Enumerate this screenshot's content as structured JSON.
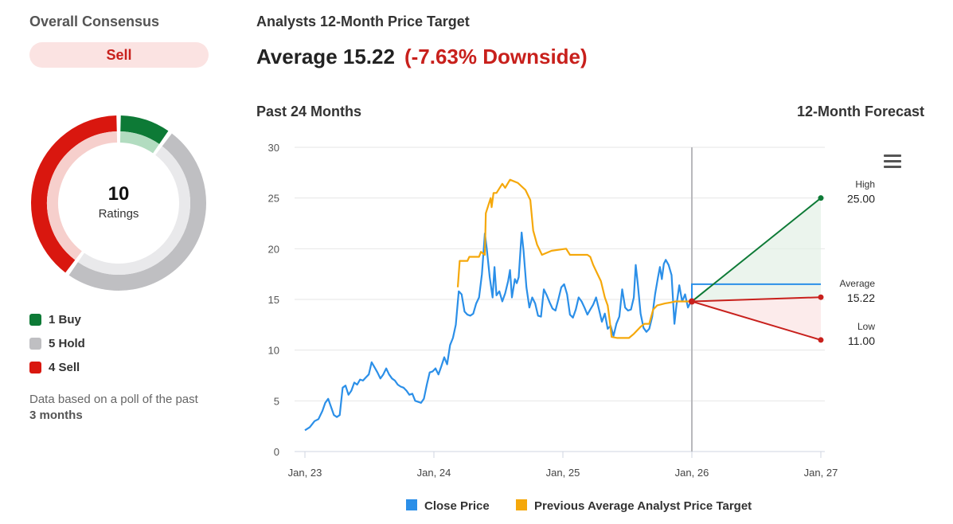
{
  "consensus": {
    "title": "Overall Consensus",
    "rating": "Sell",
    "total": "10",
    "total_caption": "Ratings",
    "legend": [
      {
        "label": "1 Buy",
        "count": 1,
        "color": "#0d7a36"
      },
      {
        "label": "5 Hold",
        "count": 5,
        "color": "#bfbfc2"
      },
      {
        "label": "4 Sell",
        "count": 4,
        "color": "#d9170f"
      }
    ],
    "note_prefix": "Data based on a poll of the past ",
    "note_bold": "3 months"
  },
  "header": {
    "title": "Analysts 12-Month Price Target",
    "average_text": "Average 15.22",
    "downside_text": "(-7.63% Downside)"
  },
  "section_labels": {
    "past": "Past 24 Months",
    "forecast": "12-Month Forecast"
  },
  "chart_data": {
    "type": "line",
    "ylim": [
      0,
      30
    ],
    "yticks": [
      "0",
      "5",
      "10",
      "15",
      "20",
      "25",
      "30"
    ],
    "x_ticks": [
      "Jan, 23",
      "Jan, 24",
      "Jan, 25",
      "Jan, 26",
      "Jan, 27"
    ],
    "grid": true,
    "legend_position": "bottom",
    "series": [
      {
        "name": "Close Price",
        "color": "#2b8fe8",
        "points": [
          [
            0.0,
            2.1
          ],
          [
            0.05,
            2.4
          ],
          [
            0.1,
            3.0
          ],
          [
            0.14,
            3.2
          ],
          [
            0.18,
            4.0
          ],
          [
            0.21,
            4.8
          ],
          [
            0.24,
            5.2
          ],
          [
            0.27,
            4.4
          ],
          [
            0.3,
            3.6
          ],
          [
            0.33,
            3.4
          ],
          [
            0.36,
            3.6
          ],
          [
            0.39,
            6.3
          ],
          [
            0.42,
            6.5
          ],
          [
            0.45,
            5.6
          ],
          [
            0.48,
            6.0
          ],
          [
            0.51,
            6.8
          ],
          [
            0.54,
            6.6
          ],
          [
            0.57,
            7.1
          ],
          [
            0.6,
            7.0
          ],
          [
            0.63,
            7.3
          ],
          [
            0.66,
            7.6
          ],
          [
            0.69,
            8.8
          ],
          [
            0.72,
            8.3
          ],
          [
            0.75,
            7.8
          ],
          [
            0.78,
            7.2
          ],
          [
            0.81,
            7.6
          ],
          [
            0.84,
            8.2
          ],
          [
            0.87,
            7.6
          ],
          [
            0.9,
            7.2
          ],
          [
            0.93,
            7.0
          ],
          [
            0.96,
            6.6
          ],
          [
            0.99,
            6.4
          ],
          [
            1.02,
            6.3
          ],
          [
            1.05,
            6.0
          ],
          [
            1.08,
            5.6
          ],
          [
            1.11,
            5.7
          ],
          [
            1.14,
            5.0
          ],
          [
            1.17,
            4.9
          ],
          [
            1.2,
            4.8
          ],
          [
            1.23,
            5.2
          ],
          [
            1.26,
            6.6
          ],
          [
            1.29,
            7.8
          ],
          [
            1.32,
            7.9
          ],
          [
            1.35,
            8.2
          ],
          [
            1.38,
            7.6
          ],
          [
            1.41,
            8.4
          ],
          [
            1.44,
            9.3
          ],
          [
            1.47,
            8.6
          ],
          [
            1.5,
            10.5
          ],
          [
            1.53,
            11.2
          ],
          [
            1.56,
            12.5
          ],
          [
            1.59,
            15.8
          ],
          [
            1.62,
            15.5
          ],
          [
            1.65,
            13.8
          ],
          [
            1.68,
            13.5
          ],
          [
            1.71,
            13.4
          ],
          [
            1.74,
            13.6
          ],
          [
            1.77,
            14.6
          ],
          [
            1.8,
            15.2
          ],
          [
            1.83,
            17.5
          ],
          [
            1.86,
            21.5
          ],
          [
            1.88,
            20.0
          ],
          [
            1.91,
            17.2
          ],
          [
            1.94,
            15.2
          ],
          [
            1.96,
            18.2
          ],
          [
            1.98,
            15.4
          ],
          [
            2.01,
            15.8
          ],
          [
            2.04,
            14.8
          ],
          [
            2.07,
            15.6
          ],
          [
            2.1,
            16.8
          ],
          [
            2.12,
            17.9
          ],
          [
            2.14,
            15.2
          ],
          [
            2.17,
            17.0
          ],
          [
            2.19,
            16.6
          ],
          [
            2.21,
            17.2
          ],
          [
            2.24,
            21.6
          ],
          [
            2.26,
            19.8
          ],
          [
            2.29,
            16.2
          ],
          [
            2.32,
            14.2
          ],
          [
            2.35,
            15.2
          ],
          [
            2.38,
            14.6
          ],
          [
            2.41,
            13.4
          ],
          [
            2.44,
            13.3
          ],
          [
            2.47,
            16.0
          ],
          [
            2.5,
            15.4
          ],
          [
            2.53,
            14.7
          ],
          [
            2.56,
            14.1
          ],
          [
            2.59,
            13.9
          ],
          [
            2.62,
            15.0
          ],
          [
            2.65,
            16.2
          ],
          [
            2.68,
            16.5
          ],
          [
            2.71,
            15.5
          ],
          [
            2.74,
            13.5
          ],
          [
            2.77,
            13.2
          ],
          [
            2.8,
            14.0
          ],
          [
            2.83,
            15.2
          ],
          [
            2.86,
            14.8
          ],
          [
            2.89,
            14.2
          ],
          [
            2.92,
            13.5
          ],
          [
            2.95,
            14.0
          ],
          [
            2.98,
            14.5
          ],
          [
            3.01,
            15.2
          ],
          [
            3.04,
            14.0
          ],
          [
            3.07,
            12.8
          ],
          [
            3.1,
            13.6
          ],
          [
            3.13,
            12.1
          ],
          [
            3.16,
            12.4
          ],
          [
            3.19,
            11.4
          ],
          [
            3.22,
            12.6
          ],
          [
            3.25,
            13.3
          ],
          [
            3.28,
            16.0
          ],
          [
            3.31,
            14.2
          ],
          [
            3.34,
            13.9
          ],
          [
            3.37,
            14.0
          ],
          [
            3.4,
            15.2
          ],
          [
            3.42,
            18.4
          ],
          [
            3.44,
            16.6
          ],
          [
            3.47,
            13.6
          ],
          [
            3.5,
            12.2
          ],
          [
            3.53,
            11.8
          ],
          [
            3.56,
            12.1
          ],
          [
            3.59,
            13.3
          ],
          [
            3.62,
            15.5
          ],
          [
            3.65,
            17.2
          ],
          [
            3.67,
            18.2
          ],
          [
            3.69,
            17.0
          ],
          [
            3.71,
            18.5
          ],
          [
            3.73,
            18.9
          ],
          [
            3.76,
            18.4
          ],
          [
            3.79,
            17.4
          ],
          [
            3.82,
            12.6
          ],
          [
            3.84,
            14.4
          ],
          [
            3.87,
            16.4
          ],
          [
            3.9,
            14.8
          ],
          [
            3.93,
            15.5
          ],
          [
            3.96,
            14.2
          ],
          [
            4.0,
            15.0
          ]
        ]
      },
      {
        "name": "Previous Average Analyst Price Target",
        "color": "#f5a80b",
        "points": [
          [
            1.58,
            16.2
          ],
          [
            1.6,
            18.8
          ],
          [
            1.68,
            18.8
          ],
          [
            1.7,
            19.2
          ],
          [
            1.8,
            19.2
          ],
          [
            1.82,
            19.7
          ],
          [
            1.86,
            19.4
          ],
          [
            1.87,
            23.5
          ],
          [
            1.92,
            25.0
          ],
          [
            1.93,
            24.1
          ],
          [
            1.95,
            25.5
          ],
          [
            1.98,
            25.5
          ],
          [
            2.04,
            26.4
          ],
          [
            2.07,
            26.0
          ],
          [
            2.12,
            26.8
          ],
          [
            2.2,
            26.5
          ],
          [
            2.28,
            25.8
          ],
          [
            2.33,
            24.8
          ],
          [
            2.36,
            21.8
          ],
          [
            2.4,
            20.4
          ],
          [
            2.45,
            19.4
          ],
          [
            2.55,
            19.8
          ],
          [
            2.7,
            20.0
          ],
          [
            2.74,
            19.4
          ],
          [
            2.92,
            19.4
          ],
          [
            2.95,
            19.2
          ],
          [
            2.98,
            18.4
          ],
          [
            3.02,
            17.6
          ],
          [
            3.06,
            16.8
          ],
          [
            3.1,
            15.2
          ],
          [
            3.13,
            14.4
          ],
          [
            3.15,
            13.0
          ],
          [
            3.17,
            11.3
          ],
          [
            3.23,
            11.2
          ],
          [
            3.35,
            11.2
          ],
          [
            3.4,
            11.6
          ],
          [
            3.47,
            12.3
          ],
          [
            3.51,
            12.6
          ],
          [
            3.56,
            12.6
          ],
          [
            3.6,
            14.0
          ],
          [
            3.64,
            14.4
          ],
          [
            3.72,
            14.6
          ],
          [
            3.78,
            14.7
          ],
          [
            3.83,
            14.8
          ],
          [
            3.9,
            14.8
          ],
          [
            4.0,
            14.8
          ]
        ]
      }
    ],
    "forecast": {
      "start": 14.8,
      "close_forecast_line": 16.5,
      "high": {
        "label": "High",
        "value": 25.0,
        "value_text": "25.00",
        "color": "#0d7a36"
      },
      "average": {
        "label": "Average",
        "value": 15.22,
        "value_text": "15.22",
        "color": "#c8201c"
      },
      "low": {
        "label": "Low",
        "value": 11.0,
        "value_text": "11.00",
        "color": "#c8201c"
      }
    }
  }
}
